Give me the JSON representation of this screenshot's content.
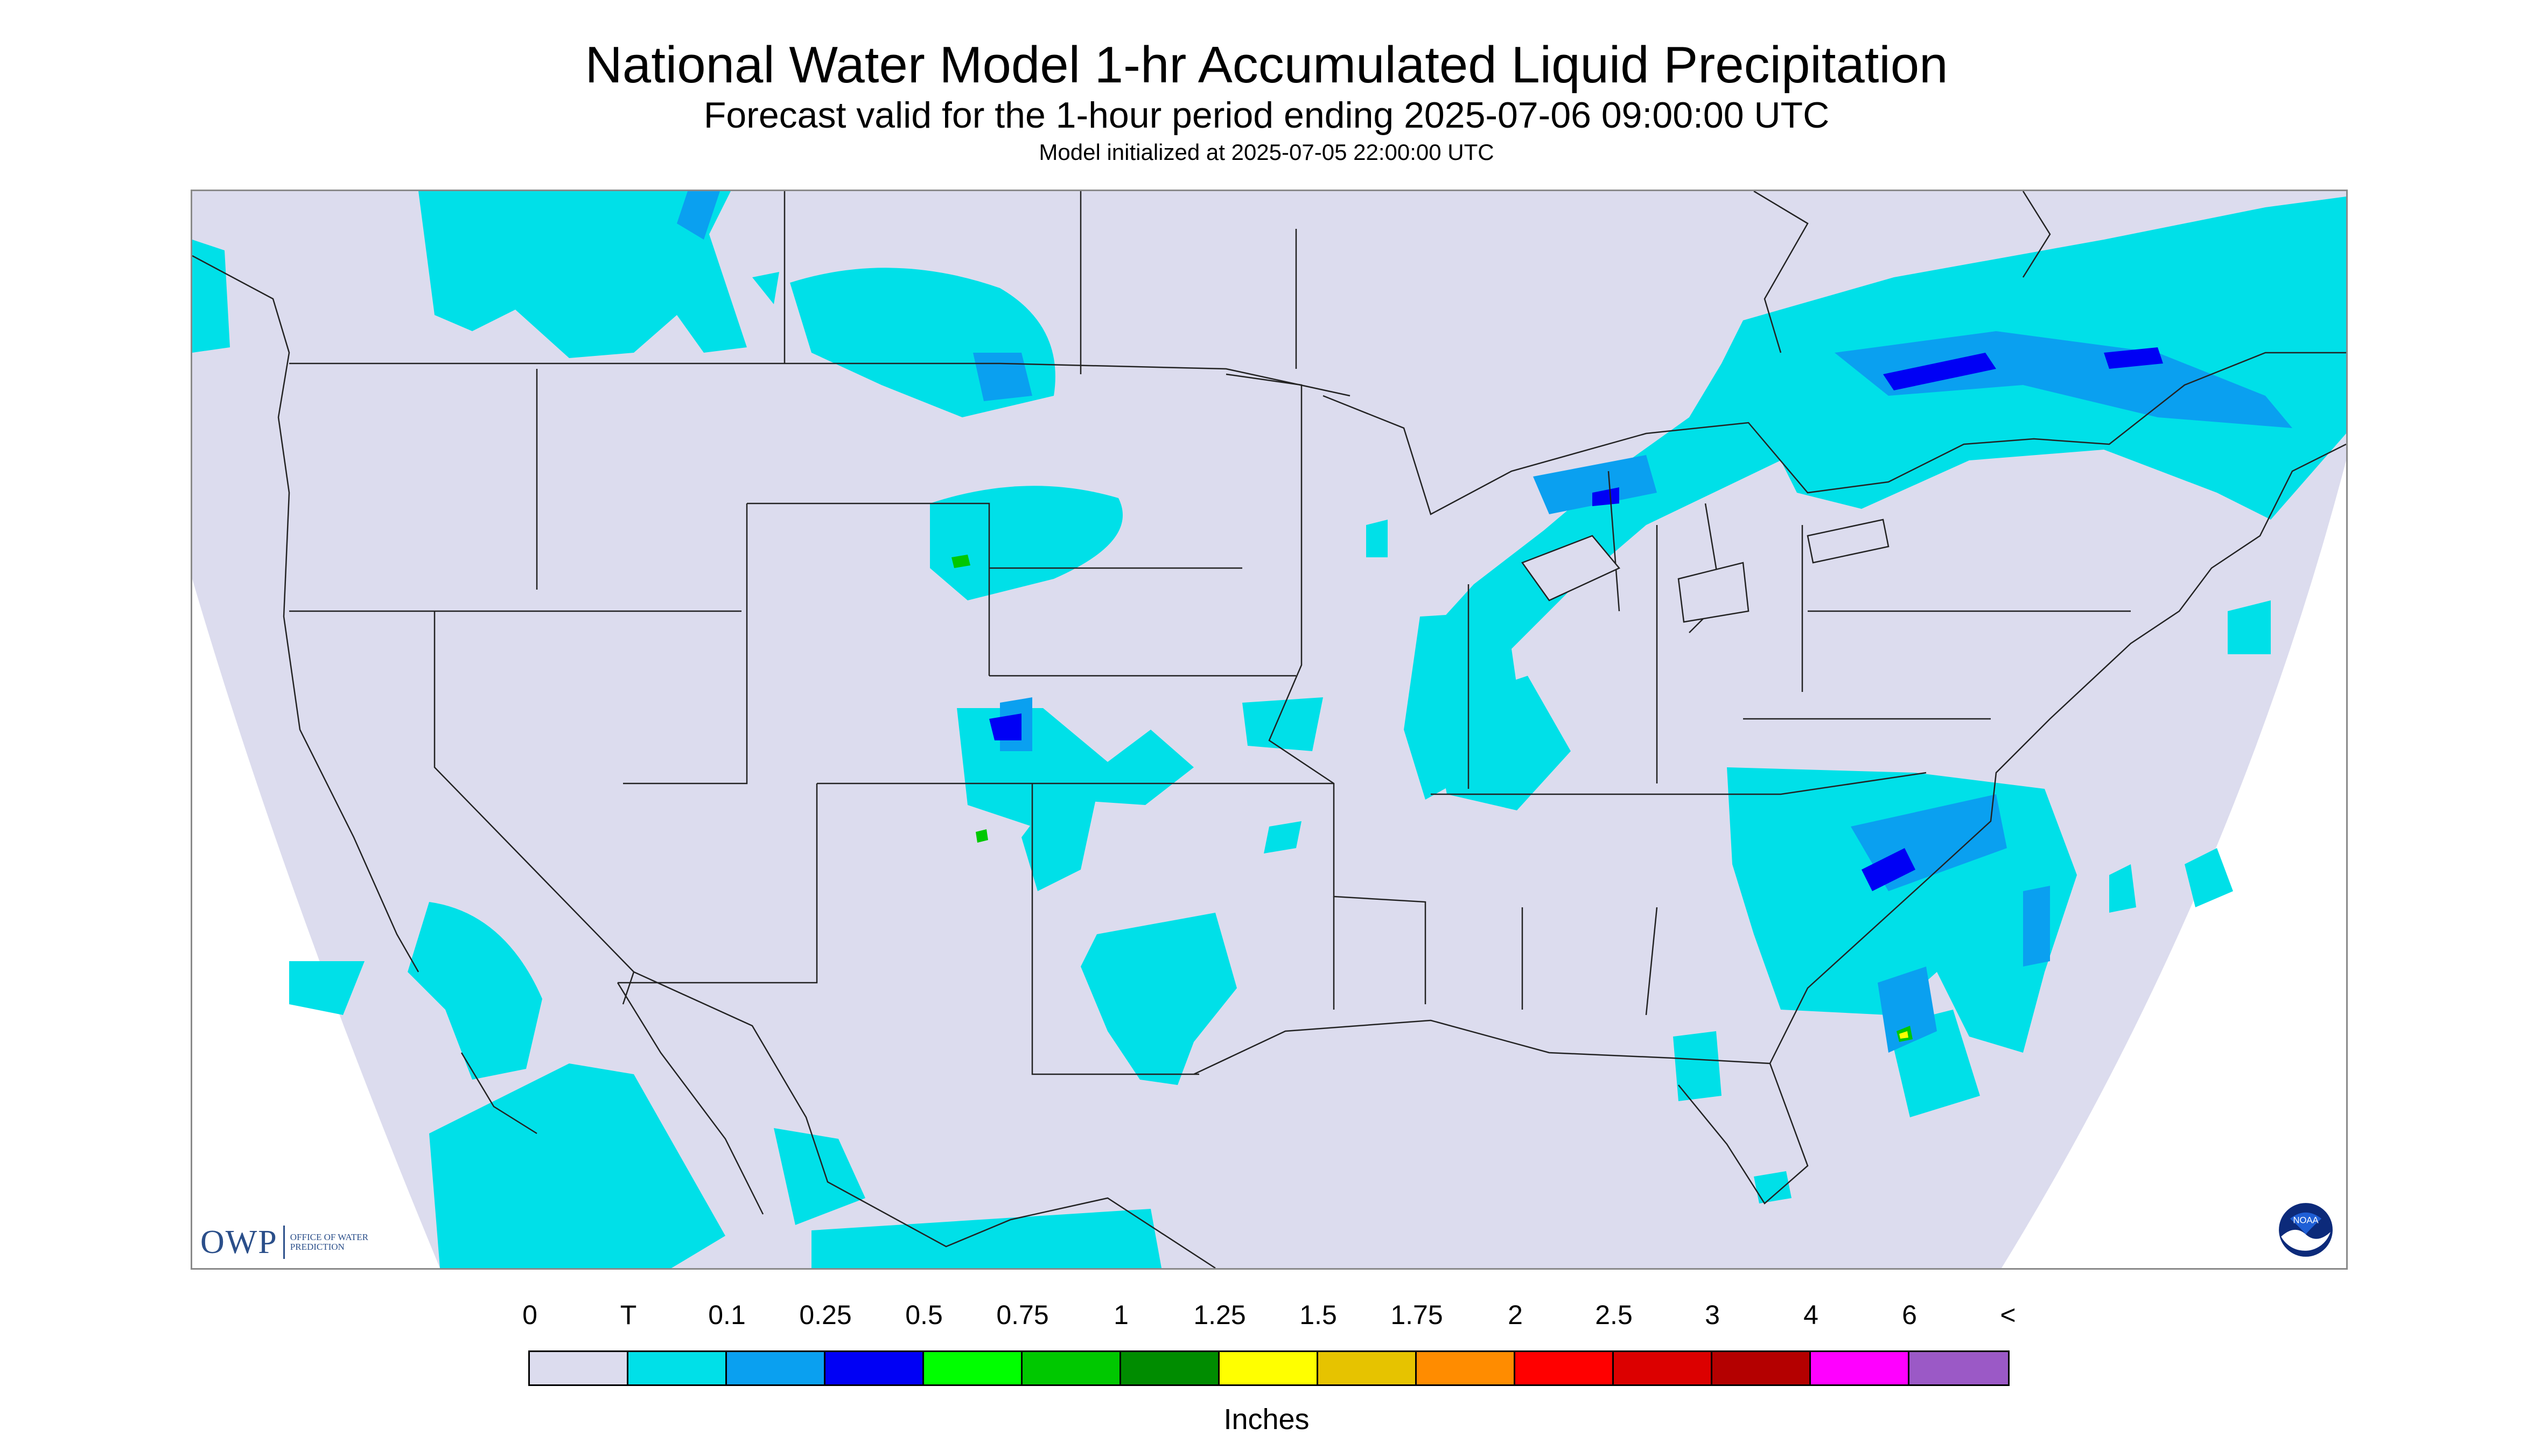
{
  "title": "National Water Model 1-hr Accumulated Liquid Precipitation",
  "subtitle": "Forecast valid for the 1-hour period ending 2025-07-06 09:00:00 UTC",
  "init_text": "Model initialized at 2025-07-05 22:00:00 UTC",
  "logos": {
    "owp_text": "OWP",
    "owp_subtext": "OFFICE OF WATER PREDICTION",
    "noaa_text": "NOAA"
  },
  "legend": {
    "units": "Inches",
    "labels": [
      "0",
      "T",
      "0.1",
      "0.25",
      "0.5",
      "0.75",
      "1",
      "1.25",
      "1.5",
      "1.75",
      "2",
      "2.5",
      "3",
      "4",
      "6",
      "<"
    ],
    "colors": [
      "#dcdcee",
      "#00e0e8",
      "#0aa0f0",
      "#0000f5",
      "#00ff00",
      "#00c800",
      "#008c00",
      "#ffff00",
      "#e6c300",
      "#ff8c00",
      "#ff0000",
      "#dc0000",
      "#b40000",
      "#ff00ff",
      "#9b59c6"
    ]
  },
  "colors": {
    "background": "#ffffff",
    "domain": "#dcdcee",
    "trace": "#00e0e8",
    "light": "#0aa0f0",
    "moderate": "#0000f5",
    "green": "#00c800",
    "yellow": "#ffff00",
    "boundary": "#222222"
  }
}
